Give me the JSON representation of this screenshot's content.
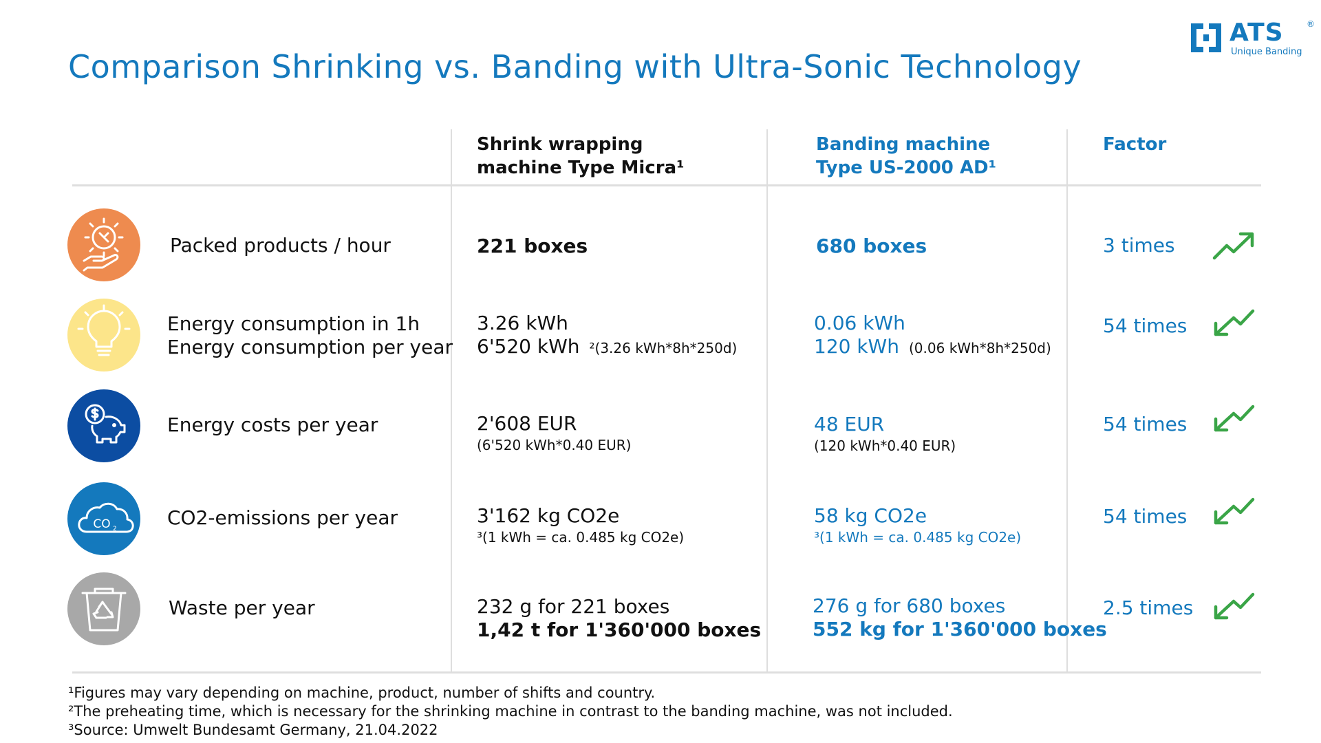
{
  "title": "Comparison Shrinking vs. Banding with Ultra-Sonic Technology",
  "logo": {
    "brand": "ATS",
    "registered": "®",
    "tagline": "Unique Banding"
  },
  "colors": {
    "accent": "#1479bd",
    "trend_green": "#3aa547",
    "grid": "#dedede"
  },
  "headers": {
    "shrink": [
      "Shrink wrapping",
      "machine Type Micra¹"
    ],
    "banding": [
      "Banding machine",
      "Type US-2000 AD¹"
    ],
    "factor": "Factor"
  },
  "rows": [
    {
      "icon": "gear-hand-icon",
      "icon_color": "#ee8b4f",
      "label": [
        "Packed products / hour"
      ],
      "shrink": {
        "line1": "221 boxes"
      },
      "banding": {
        "line1": "680 boxes"
      },
      "factor": "3 times",
      "trend_icon": "trend-up-arrow-icon"
    },
    {
      "icon": "lightbulb-icon",
      "icon_color": "#fce58a",
      "label": [
        "Energy consumption in 1h",
        "Energy consumption per year"
      ],
      "shrink": {
        "line1": "3.26 kWh",
        "line2": "6'520 kWh",
        "note": "²(3.26 kWh*8h*250d)"
      },
      "banding": {
        "line1": "0.06 kWh",
        "line2": "120 kWh",
        "note": "(0.06 kWh*8h*250d)"
      },
      "factor": "54 times",
      "trend_icon": "trend-down-arrow-icon"
    },
    {
      "icon": "piggy-bank-coin-icon",
      "icon_color": "#0c4da2",
      "label": [
        "Energy costs per year"
      ],
      "shrink": {
        "line1": "2'608 EUR",
        "note": "(6'520 kWh*0.40 EUR)"
      },
      "banding": {
        "line1": "48 EUR",
        "note": "(120 kWh*0.40 EUR)"
      },
      "factor": "54 times",
      "trend_icon": "trend-down-arrow-icon"
    },
    {
      "icon": "co2-cloud-icon",
      "icon_color": "#1479bd",
      "label": [
        "CO2-emissions per year"
      ],
      "shrink": {
        "line1": "3'162 kg CO2e",
        "note": "³(1 kWh = ca. 0.485 kg CO2e)"
      },
      "banding": {
        "line1": "58 kg CO2e",
        "note": "³(1 kWh = ca. 0.485 kg CO2e)"
      },
      "factor": "54 times",
      "trend_icon": "trend-down-arrow-icon"
    },
    {
      "icon": "recycle-bin-icon",
      "icon_color": "#a8a8a8",
      "label": [
        "Waste per year"
      ],
      "shrink": {
        "line1": "232 g for 221 boxes",
        "line2": "1,42 t for 1'360'000 boxes"
      },
      "banding": {
        "line1": "276 g for 680 boxes",
        "line2": "552 kg for 1'360'000 boxes"
      },
      "factor": "2.5 times",
      "trend_icon": "trend-down-arrow-icon"
    }
  ],
  "footnotes": [
    "¹Figures may vary depending on machine, product, number of shifts and country.",
    "²The preheating time, which is necessary for the shrinking machine in contrast to the banding machine, was not included.",
    "³Source: Umwelt Bundesamt Germany, 21.04.2022"
  ]
}
